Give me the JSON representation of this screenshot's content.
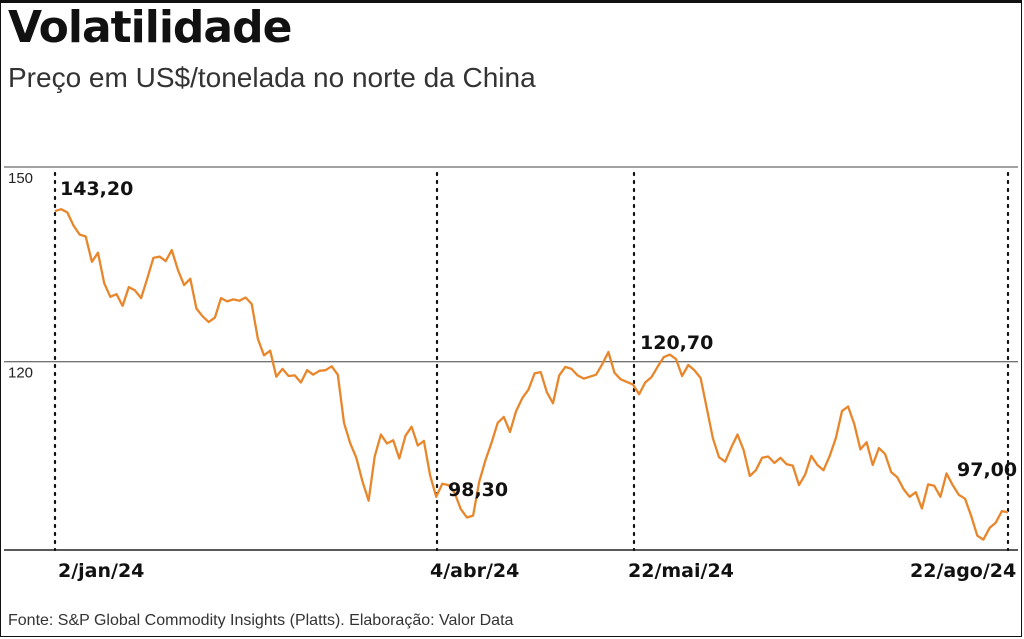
{
  "header": {
    "title": "Volatilidade",
    "subtitle": "Preço em US$/tonelada no norte da China"
  },
  "footer": {
    "source": "Fonte: S&P Global Commodity Insights (Platts). Elaboração: Valor Data"
  },
  "colors": {
    "line": "#E8862B",
    "gridline": "#444444",
    "text": "#111111"
  },
  "chart_data": {
    "type": "line",
    "title": "Volatilidade",
    "subtitle": "Preço em US$/tonelada no norte da China",
    "xlabel": "",
    "ylabel": "",
    "ylim": [
      91,
      150
    ],
    "yticks": [
      150,
      120
    ],
    "y_tick_labels": [
      "150",
      "120"
    ],
    "grid": "horizontal lines at y ticks",
    "x_tick_labels": [
      "2/jan/24",
      "4/abr/24",
      "22/mai/24",
      "22/ago/24"
    ],
    "series": [
      {
        "values": [
          143.2,
          143.5,
          143.0,
          141.0,
          139.6,
          139.3,
          135.4,
          136.8,
          132.1,
          130.0,
          130.4,
          128.6,
          131.5,
          131.0,
          129.8,
          132.8,
          136.0,
          136.2,
          135.5,
          137.2,
          134.1,
          131.8,
          132.8,
          128.2,
          127.0,
          126.1,
          126.8,
          129.8,
          129.3,
          129.6,
          129.4,
          129.9,
          128.9,
          123.5,
          121.0,
          121.7,
          117.7,
          118.9,
          117.8,
          117.9,
          116.8,
          118.7,
          118.0,
          118.6,
          118.7,
          119.3,
          118.0,
          110.6,
          107.5,
          105.2,
          101.6,
          98.6,
          105.4,
          108.8,
          107.4,
          107.9,
          105.1,
          108.6,
          110.0,
          107.1,
          107.8,
          102.5,
          99.2,
          101.2,
          101.0,
          99.8,
          97.3,
          96.0,
          96.3,
          101.5,
          104.8,
          107.5,
          110.6,
          111.5,
          109.2,
          112.4,
          114.4,
          115.7,
          118.2,
          118.4,
          115.3,
          113.6,
          117.9,
          119.2,
          118.9,
          117.9,
          117.4,
          117.7,
          118.0,
          119.6,
          121.5,
          118.3,
          117.3,
          116.9,
          116.5,
          115.0,
          116.8,
          117.6,
          119.2,
          120.7,
          121.1,
          120.4,
          117.8,
          119.5,
          118.7,
          117.5,
          112.9,
          108.2,
          105.3,
          104.6,
          106.8,
          108.8,
          106.4,
          102.4,
          103.3,
          105.2,
          105.4,
          104.4,
          105.2,
          104.2,
          104.0,
          101.0,
          102.6,
          105.5,
          104.1,
          103.3,
          105.5,
          108.2,
          112.4,
          113.1,
          110.4,
          106.5,
          107.6,
          104.1,
          106.7,
          105.8,
          103.0,
          102.2,
          100.4,
          99.2,
          99.9,
          97.4,
          101.1,
          100.9,
          99.2,
          102.8,
          101.0,
          99.5,
          98.9,
          96.3,
          93.2,
          92.6,
          94.4,
          95.2,
          97.0,
          96.8
        ]
      }
    ],
    "annotations": [
      {
        "label": "143,20",
        "value": 143.2
      },
      {
        "label": "98,30",
        "value": 98.3
      },
      {
        "label": "120,70",
        "value": 120.7
      },
      {
        "label": "97,00",
        "value": 97.0
      }
    ]
  }
}
